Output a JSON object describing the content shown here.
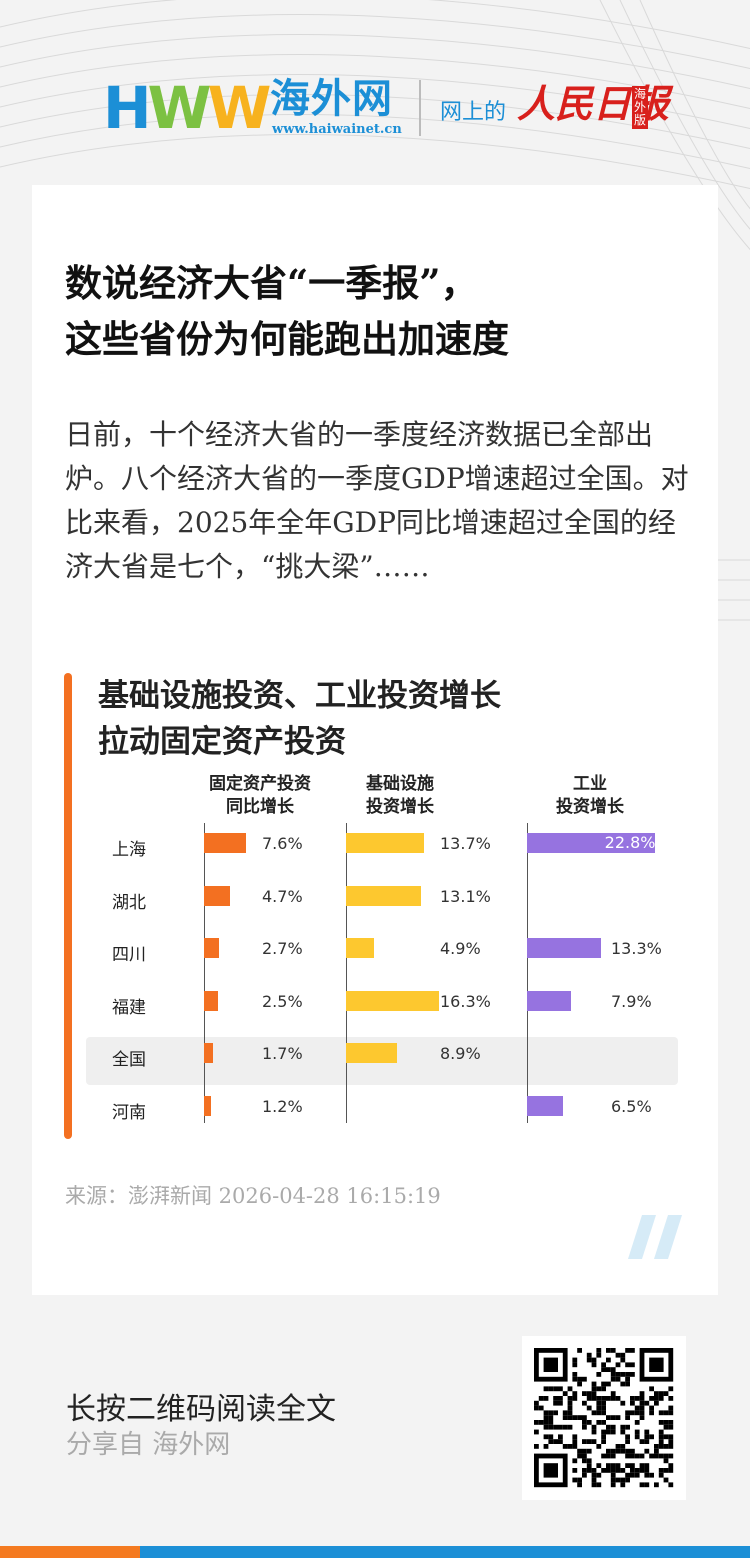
{
  "header": {
    "logo_mark": "HWW",
    "logo_name": "海外网",
    "logo_url": "www.haiwainet.cn",
    "partner_prefix": "网上的",
    "partner_name": "人民日报",
    "partner_edition": "海外版"
  },
  "article": {
    "title_line1": "数说经济大省“一季报”，",
    "title_line2": "这些省份为何能跑出加速度",
    "summary": "日前，十个经济大省的一季度经济数据已全部出炉。八个经济大省的一季度GDP增速超过全国。对比来看，2025年全年GDP同比增速超过全国的经济大省是七个，“挑大梁”……",
    "source": "来源：澎湃新闻   2026-04-28 16:15:19"
  },
  "footer": {
    "cta": "长按二维码阅读全文",
    "share": "分享自 海外网"
  },
  "colors": {
    "accent_orange": "#f37021",
    "infra_yellow": "#fdc82f",
    "industry_purple": "#9673e0",
    "brand_blue": "#1c8fd6"
  },
  "chart_data": {
    "type": "bar",
    "title_line1": "基础设施投资、工业投资增长",
    "title_line2": "拉动固定资产投资",
    "categories": [
      "上海",
      "湖北",
      "四川",
      "福建",
      "全国",
      "河南"
    ],
    "highlighted_category": "全国",
    "series": [
      {
        "name": "固定资产投资同比增长",
        "header_line1": "固定资产投资",
        "header_line2": "同比增长",
        "values": [
          7.6,
          4.7,
          2.7,
          2.5,
          1.7,
          1.2
        ],
        "labels": [
          "7.6%",
          "4.7%",
          "2.7%",
          "2.5%",
          "1.7%",
          "1.2%"
        ],
        "color": "#f37021"
      },
      {
        "name": "基础设施投资增长",
        "header_line1": "基础设施",
        "header_line2": "投资增长",
        "values": [
          13.7,
          13.1,
          4.9,
          16.3,
          8.9,
          null
        ],
        "labels": [
          "13.7%",
          "13.1%",
          "4.9%",
          "16.3%",
          "8.9%",
          ""
        ],
        "color": "#fdc82f"
      },
      {
        "name": "工业投资增长",
        "header_line1": "工业",
        "header_line2": "投资增长",
        "values": [
          22.8,
          null,
          13.3,
          7.9,
          null,
          6.5
        ],
        "labels": [
          "22.8%",
          "",
          "13.3%",
          "7.9%",
          "",
          "6.5%"
        ],
        "color": "#9673e0"
      }
    ]
  }
}
